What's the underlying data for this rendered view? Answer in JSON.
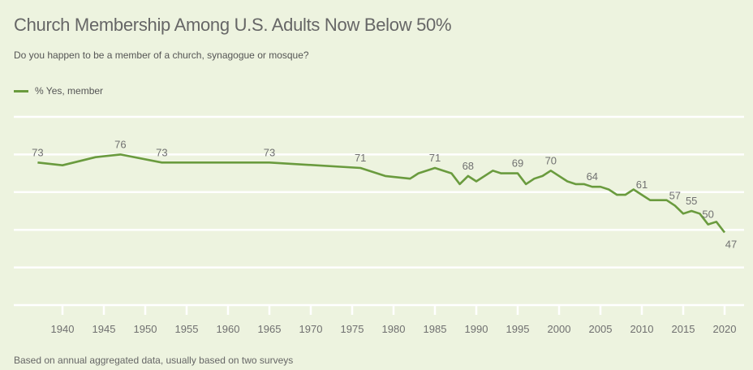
{
  "title": "Church Membership Among U.S. Adults Now Below 50%",
  "subtitle": "Do you happen to be a member of a church, synagogue or mosque?",
  "footnote": "Based on annual aggregated data, usually based on two surveys",
  "colors": {
    "background": "#edf3df",
    "series": "#6a9b3e",
    "gridline": "#ffffff",
    "text": "#666666"
  },
  "chart_data": {
    "type": "line",
    "title": "Church Membership Among U.S. Adults Now Below 50%",
    "subtitle": "Do you happen to be a member of a church, synagogue or mosque?",
    "xlabel": "",
    "ylabel": "",
    "xlim": [
      1934,
      2022
    ],
    "ylim": [
      20,
      90
    ],
    "y_gridlines": [
      20,
      34,
      48,
      62,
      76,
      90
    ],
    "grid": true,
    "legend_position": "top-left",
    "x_ticks": [
      1940,
      1945,
      1950,
      1955,
      1960,
      1965,
      1970,
      1975,
      1980,
      1985,
      1990,
      1995,
      2000,
      2005,
      2010,
      2015,
      2020
    ],
    "x_tick_labels": [
      "1940",
      "1945",
      "1950",
      "1955",
      "1960",
      "1965",
      "1970",
      "1975",
      "1980",
      "1985",
      "1990",
      "1995",
      "2000",
      "2005",
      "2010",
      "2015",
      "2020"
    ],
    "series": [
      {
        "name": "% Yes, member",
        "color": "#6a9b3e",
        "x": [
          1937,
          1940,
          1944,
          1947,
          1952,
          1965,
          1976,
          1979,
          1982,
          1983,
          1985,
          1987,
          1988,
          1989,
          1990,
          1992,
          1993,
          1995,
          1996,
          1997,
          1998,
          1999,
          2001,
          2002,
          2003,
          2004,
          2005,
          2006,
          2007,
          2008,
          2009,
          2010,
          2011,
          2012,
          2013,
          2014,
          2015,
          2016,
          2017,
          2018,
          2019,
          2020
        ],
        "values": [
          73,
          72,
          75,
          76,
          73,
          73,
          71,
          68,
          67,
          69,
          71,
          69,
          65,
          68,
          66,
          70,
          69,
          69,
          65,
          67,
          68,
          70,
          66,
          65,
          65,
          64,
          64,
          63,
          61,
          61,
          63,
          61,
          59,
          59,
          59,
          57,
          54,
          55,
          54,
          50,
          51,
          47
        ]
      }
    ],
    "annotations": [
      {
        "x": 1937,
        "value": 73,
        "label": "73",
        "placement": "above"
      },
      {
        "x": 1947,
        "value": 76,
        "label": "76",
        "placement": "above"
      },
      {
        "x": 1952,
        "value": 73,
        "label": "73",
        "placement": "above"
      },
      {
        "x": 1965,
        "value": 73,
        "label": "73",
        "placement": "above"
      },
      {
        "x": 1976,
        "value": 71,
        "label": "71",
        "placement": "above"
      },
      {
        "x": 1985,
        "value": 71,
        "label": "71",
        "placement": "above"
      },
      {
        "x": 1989,
        "value": 68,
        "label": "68",
        "placement": "above"
      },
      {
        "x": 1995,
        "value": 69,
        "label": "69",
        "placement": "above"
      },
      {
        "x": 1999,
        "value": 70,
        "label": "70",
        "placement": "above"
      },
      {
        "x": 2004,
        "value": 64,
        "label": "64",
        "placement": "above"
      },
      {
        "x": 2010,
        "value": 61,
        "label": "61",
        "placement": "above"
      },
      {
        "x": 2014,
        "value": 57,
        "label": "57",
        "placement": "above"
      },
      {
        "x": 2016,
        "value": 55,
        "label": "55",
        "placement": "above"
      },
      {
        "x": 2018,
        "value": 50,
        "label": "50",
        "placement": "above"
      },
      {
        "x": 2020,
        "value": 47,
        "label": "47",
        "placement": "below"
      }
    ]
  }
}
